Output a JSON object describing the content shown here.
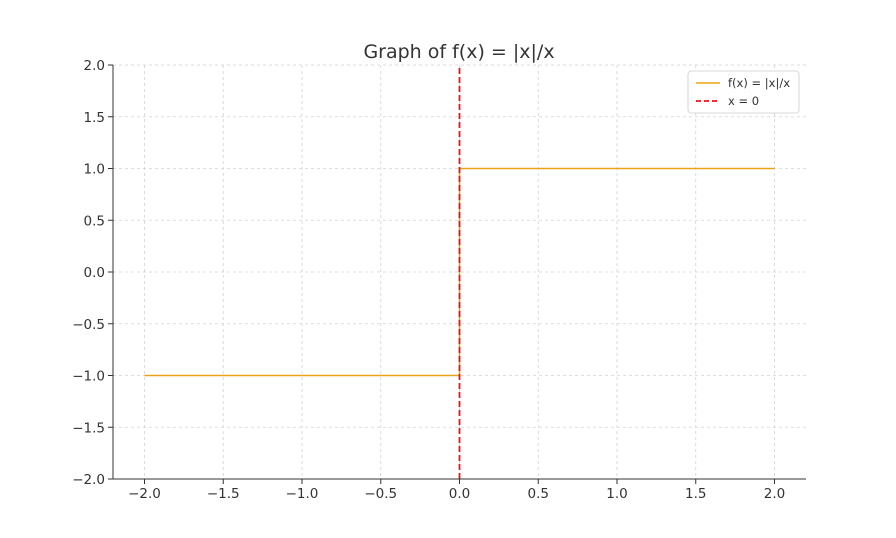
{
  "chart_data": {
    "type": "line",
    "title": "Graph of f(x) = |x|/x",
    "xlabel": "",
    "ylabel": "",
    "xlim": [
      -2.2,
      2.2
    ],
    "ylim": [
      -2.0,
      2.0
    ],
    "xticks": [
      -2.0,
      -1.5,
      -1.0,
      -0.5,
      0.0,
      0.5,
      1.0,
      1.5,
      2.0
    ],
    "yticks": [
      -2.0,
      -1.5,
      -1.0,
      -0.5,
      0.0,
      0.5,
      1.0,
      1.5,
      2.0
    ],
    "xtick_labels": [
      "−2.0",
      "−1.5",
      "−1.0",
      "−0.5",
      "0.0",
      "0.5",
      "1.0",
      "1.5",
      "2.0"
    ],
    "ytick_labels": [
      "−2.0",
      "−1.5",
      "−1.0",
      "−0.5",
      "0.0",
      "0.5",
      "1.0",
      "1.5",
      "2.0"
    ],
    "grid": true,
    "legend_position": "top-right",
    "series": [
      {
        "name": "f(x) = |x|/x",
        "color": "#E8A317",
        "style": "solid",
        "x": [
          -2.0,
          0.0,
          0.0,
          2.0
        ],
        "y": [
          -1.0,
          -1.0,
          1.0,
          1.0
        ]
      },
      {
        "name": "x = 0",
        "color": "#E0141E",
        "style": "dashed",
        "x": [
          0.0,
          0.0
        ],
        "y": [
          -2.0,
          2.0
        ]
      }
    ]
  }
}
